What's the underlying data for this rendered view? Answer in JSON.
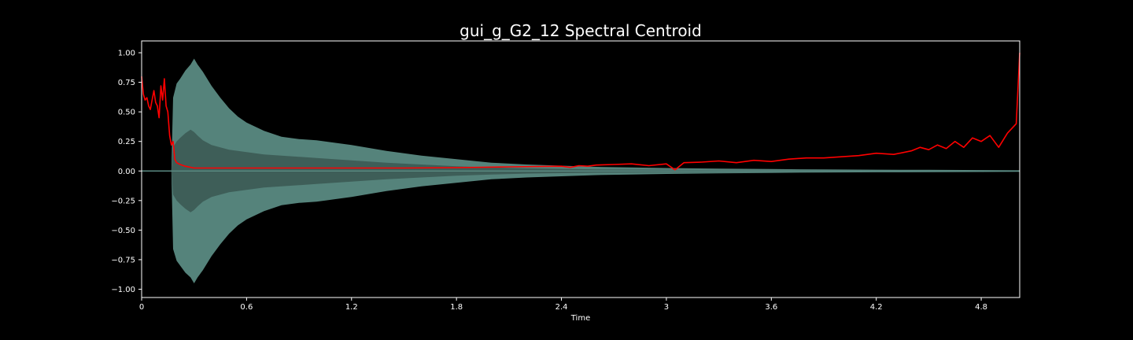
{
  "chart_data": {
    "type": "line",
    "title": "gui_g_G2_12 Spectral Centroid",
    "xlabel": "Time",
    "ylabel": "",
    "xlim": [
      0,
      5.02
    ],
    "ylim": [
      -1.07,
      1.1
    ],
    "xticks": [
      {
        "value": 0,
        "label": "0"
      },
      {
        "value": 0.6,
        "label": "0.6"
      },
      {
        "value": 1.2,
        "label": "1.2"
      },
      {
        "value": 1.8,
        "label": "1.8"
      },
      {
        "value": 2.4,
        "label": "2.4"
      },
      {
        "value": 3.0,
        "label": "3"
      },
      {
        "value": 3.6,
        "label": "3.6"
      },
      {
        "value": 4.2,
        "label": "4.2"
      },
      {
        "value": 4.8,
        "label": "4.8"
      }
    ],
    "yticks": [
      {
        "value": 1.0,
        "label": "1.00"
      },
      {
        "value": 0.75,
        "label": "0.75"
      },
      {
        "value": 0.5,
        "label": "0.50"
      },
      {
        "value": 0.25,
        "label": "0.25"
      },
      {
        "value": 0.0,
        "label": "0.00"
      },
      {
        "value": -0.25,
        "label": "−0.25"
      },
      {
        "value": -0.5,
        "label": "−0.50"
      },
      {
        "value": -0.75,
        "label": "−0.75"
      },
      {
        "value": -1.0,
        "label": "−1.00"
      }
    ],
    "colors": {
      "background": "#000000",
      "axes": "#ffffff",
      "waveform": "#5e9188",
      "waveform_inner": "#3c5a54",
      "centroid": "#ff0000",
      "text": "#ffffff"
    },
    "series": [
      {
        "name": "waveform_envelope",
        "kind": "envelope",
        "x": [
          0,
          0.17,
          0.18,
          0.2,
          0.22,
          0.25,
          0.28,
          0.3,
          0.32,
          0.35,
          0.4,
          0.45,
          0.5,
          0.55,
          0.6,
          0.7,
          0.8,
          0.9,
          1.0,
          1.1,
          1.2,
          1.4,
          1.6,
          1.8,
          2.0,
          2.2,
          2.4,
          2.6,
          2.8,
          3.0,
          3.3,
          3.6,
          3.9,
          4.2,
          4.5,
          4.8,
          5.02
        ],
        "upper": [
          0.005,
          0.005,
          0.62,
          0.74,
          0.78,
          0.85,
          0.9,
          0.95,
          0.9,
          0.84,
          0.72,
          0.62,
          0.53,
          0.46,
          0.41,
          0.34,
          0.29,
          0.27,
          0.26,
          0.24,
          0.22,
          0.17,
          0.13,
          0.1,
          0.07,
          0.055,
          0.045,
          0.035,
          0.03,
          0.025,
          0.02,
          0.016,
          0.013,
          0.011,
          0.01,
          0.008,
          0.006
        ],
        "lower": [
          -0.005,
          -0.005,
          -0.66,
          -0.76,
          -0.8,
          -0.86,
          -0.9,
          -0.95,
          -0.9,
          -0.84,
          -0.72,
          -0.62,
          -0.53,
          -0.46,
          -0.41,
          -0.34,
          -0.29,
          -0.27,
          -0.26,
          -0.24,
          -0.22,
          -0.17,
          -0.13,
          -0.1,
          -0.07,
          -0.055,
          -0.045,
          -0.035,
          -0.03,
          -0.025,
          -0.02,
          -0.016,
          -0.013,
          -0.011,
          -0.01,
          -0.008,
          -0.006
        ],
        "inner_upper": [
          0.003,
          0.003,
          0.2,
          0.25,
          0.28,
          0.32,
          0.35,
          0.33,
          0.3,
          0.26,
          0.22,
          0.2,
          0.18,
          0.17,
          0.16,
          0.14,
          0.13,
          0.12,
          0.11,
          0.1,
          0.09,
          0.07,
          0.055,
          0.04,
          0.03,
          0.022,
          0.018,
          0.014,
          0.012,
          0.01,
          0.008,
          0.007,
          0.006,
          0.005,
          0.005,
          0.004,
          0.003
        ],
        "inner_lower": [
          -0.003,
          -0.003,
          -0.2,
          -0.25,
          -0.28,
          -0.32,
          -0.35,
          -0.33,
          -0.3,
          -0.26,
          -0.22,
          -0.2,
          -0.18,
          -0.17,
          -0.16,
          -0.14,
          -0.13,
          -0.12,
          -0.11,
          -0.1,
          -0.09,
          -0.07,
          -0.055,
          -0.04,
          -0.03,
          -0.022,
          -0.018,
          -0.014,
          -0.012,
          -0.01,
          -0.008,
          -0.007,
          -0.006,
          -0.005,
          -0.005,
          -0.004,
          -0.003
        ]
      },
      {
        "name": "spectral_centroid",
        "kind": "line",
        "x": [
          0.0,
          0.01,
          0.02,
          0.03,
          0.04,
          0.05,
          0.06,
          0.07,
          0.08,
          0.09,
          0.1,
          0.11,
          0.12,
          0.13,
          0.14,
          0.15,
          0.16,
          0.17,
          0.18,
          0.19,
          0.2,
          0.22,
          0.25,
          0.3,
          0.4,
          0.6,
          0.8,
          1.0,
          1.2,
          1.5,
          1.8,
          2.1,
          2.4,
          2.45,
          2.5,
          2.55,
          2.6,
          2.7,
          2.8,
          2.9,
          3.0,
          3.05,
          3.1,
          3.2,
          3.3,
          3.4,
          3.5,
          3.6,
          3.7,
          3.8,
          3.9,
          4.0,
          4.1,
          4.2,
          4.3,
          4.4,
          4.45,
          4.5,
          4.55,
          4.6,
          4.65,
          4.7,
          4.75,
          4.8,
          4.85,
          4.9,
          4.95,
          5.0,
          5.02
        ],
        "y": [
          0.8,
          0.65,
          0.6,
          0.62,
          0.55,
          0.52,
          0.6,
          0.68,
          0.58,
          0.55,
          0.45,
          0.72,
          0.6,
          0.78,
          0.55,
          0.5,
          0.3,
          0.22,
          0.25,
          0.1,
          0.07,
          0.055,
          0.04,
          0.025,
          0.025,
          0.025,
          0.025,
          0.025,
          0.025,
          0.025,
          0.028,
          0.035,
          0.04,
          0.03,
          0.045,
          0.04,
          0.05,
          0.055,
          0.06,
          0.045,
          0.06,
          0.01,
          0.07,
          0.075,
          0.085,
          0.07,
          0.09,
          0.08,
          0.1,
          0.11,
          0.11,
          0.12,
          0.13,
          0.15,
          0.14,
          0.17,
          0.2,
          0.18,
          0.22,
          0.19,
          0.25,
          0.2,
          0.28,
          0.25,
          0.3,
          0.2,
          0.32,
          0.4,
          1.0
        ]
      }
    ]
  }
}
